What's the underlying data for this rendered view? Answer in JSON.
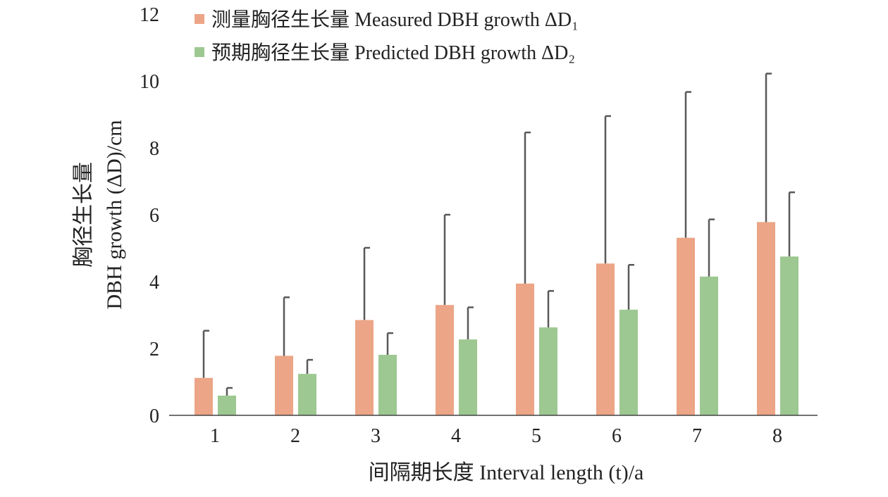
{
  "chart_data": {
    "type": "bar",
    "title": "",
    "xlabel": "间隔期长度 Interval length (t)/a",
    "ylabel_line1": "胸径生长量",
    "ylabel_line2": "DBH growth (ΔD)/cm",
    "ylim": [
      0,
      12
    ],
    "yticks": [
      "0",
      "2",
      "4",
      "6",
      "8",
      "10",
      "12"
    ],
    "categories": [
      "1",
      "2",
      "3",
      "4",
      "5",
      "6",
      "7",
      "8"
    ],
    "legend_position": "top",
    "series": [
      {
        "name": "测量胸径生长量 Measured DBH growth ΔD₁",
        "color": "#eca586",
        "values": [
          1.12,
          1.78,
          2.85,
          3.3,
          3.94,
          4.54,
          5.31,
          5.78
        ],
        "error_upper": [
          2.53,
          3.53,
          5.01,
          6.0,
          8.46,
          8.95,
          9.67,
          10.22
        ]
      },
      {
        "name": "预期胸径生长量 Predicted DBH growth ΔD₂",
        "color": "#9dc891",
        "values": [
          0.59,
          1.24,
          1.81,
          2.27,
          2.63,
          3.16,
          4.15,
          4.75
        ],
        "error_upper": [
          0.82,
          1.66,
          2.46,
          3.23,
          3.72,
          4.5,
          5.86,
          6.67
        ]
      }
    ],
    "error_bar_color": "#595959"
  }
}
